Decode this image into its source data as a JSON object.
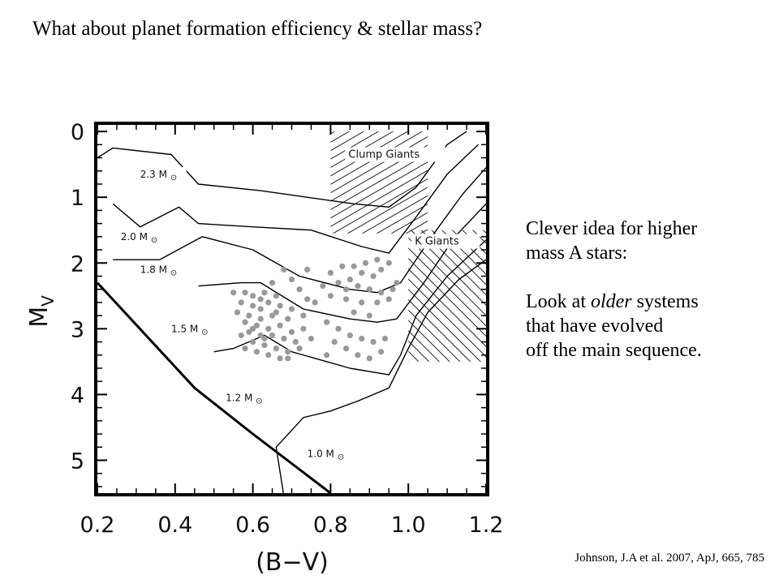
{
  "slide": {
    "title": "What about planet formation efficiency & stellar mass?",
    "side_text_lines": [
      "Clever idea for higher",
      "mass A stars:",
      "",
      "Look at older systems",
      "that have evolved",
      "off the main sequence."
    ],
    "side_text_emphasis": "older",
    "citation": "Johnson, J.A et al. 2007, ApJ, 665, 785"
  },
  "chart_data": {
    "type": "scatter",
    "title": "",
    "xlabel": "(B−V)",
    "ylabel": "M_V",
    "ylabel_main": "M",
    "ylabel_sub": "V",
    "xlim": [
      0.2,
      1.2
    ],
    "ylim": [
      5.5,
      -0.1
    ],
    "y_inverted": true,
    "x_ticks": [
      "0.2",
      "0.4",
      "0.6",
      "0.8",
      "1.0",
      "1.2"
    ],
    "y_ticks": [
      "0",
      "1",
      "2",
      "3",
      "4",
      "5"
    ],
    "grid": false,
    "legend": "none",
    "colors": {
      "points": "#999999",
      "lines": "#000000",
      "axes": "#000000"
    },
    "sun_symbol": "⊙",
    "regions": [
      {
        "name": "Clump Giants",
        "x": [
          0.8,
          1.05
        ],
        "y": [
          0.0,
          1.55
        ]
      },
      {
        "name": "K Giants",
        "x": [
          1.0,
          1.2
        ],
        "y": [
          1.5,
          3.5
        ]
      }
    ],
    "main_sequence": [
      [
        0.2,
        2.3
      ],
      [
        0.45,
        3.9
      ],
      [
        0.6,
        4.6
      ],
      [
        0.8,
        5.5
      ]
    ],
    "tracks": [
      {
        "mass_label": "2.3 M",
        "label_at": [
          0.31,
          0.7
        ],
        "points": [
          [
            0.2,
            0.4
          ],
          [
            0.24,
            0.25
          ],
          [
            0.39,
            0.35
          ],
          [
            0.46,
            0.8
          ],
          [
            0.62,
            0.9
          ],
          [
            0.74,
            1.0
          ],
          [
            0.86,
            1.1
          ],
          [
            0.95,
            1.15
          ],
          [
            1.02,
            0.85
          ],
          [
            1.1,
            0.2
          ],
          [
            1.15,
            0.0
          ]
        ]
      },
      {
        "mass_label": "2.0 M",
        "label_at": [
          0.26,
          1.65
        ],
        "points": [
          [
            0.24,
            1.1
          ],
          [
            0.31,
            1.45
          ],
          [
            0.41,
            1.15
          ],
          [
            0.46,
            1.4
          ],
          [
            0.6,
            1.45
          ],
          [
            0.75,
            1.5
          ],
          [
            0.88,
            1.75
          ],
          [
            0.95,
            1.85
          ],
          [
            1.02,
            1.3
          ],
          [
            1.1,
            0.65
          ],
          [
            1.18,
            0.2
          ]
        ]
      },
      {
        "mass_label": "1.8 M",
        "label_at": [
          0.31,
          2.15
        ],
        "points": [
          [
            0.24,
            1.95
          ],
          [
            0.36,
            1.95
          ],
          [
            0.47,
            1.6
          ],
          [
            0.6,
            1.8
          ],
          [
            0.72,
            2.2
          ],
          [
            0.85,
            2.4
          ],
          [
            0.92,
            2.45
          ],
          [
            0.98,
            2.3
          ],
          [
            1.06,
            1.6
          ],
          [
            1.14,
            0.95
          ],
          [
            1.2,
            0.55
          ]
        ]
      },
      {
        "mass_label": "1.5 M",
        "label_at": [
          0.39,
          3.05
        ],
        "points": [
          [
            0.46,
            2.35
          ],
          [
            0.57,
            2.3
          ],
          [
            0.62,
            2.3
          ],
          [
            0.73,
            2.7
          ],
          [
            0.85,
            2.85
          ],
          [
            0.92,
            2.9
          ],
          [
            0.97,
            2.85
          ],
          [
            1.04,
            2.3
          ],
          [
            1.12,
            1.6
          ],
          [
            1.2,
            1.1
          ]
        ]
      },
      {
        "mass_label": "1.2 M",
        "label_at": [
          0.53,
          4.1
        ],
        "points": [
          [
            0.5,
            3.35
          ],
          [
            0.55,
            3.3
          ],
          [
            0.63,
            3.1
          ],
          [
            0.7,
            3.35
          ],
          [
            0.85,
            3.6
          ],
          [
            0.95,
            3.7
          ],
          [
            0.98,
            3.4
          ],
          [
            1.02,
            2.8
          ],
          [
            1.1,
            2.2
          ],
          [
            1.2,
            1.65
          ]
        ]
      },
      {
        "mass_label": "1.0 M",
        "label_at": [
          0.74,
          4.95
        ],
        "points": [
          [
            0.68,
            5.55
          ],
          [
            0.66,
            4.8
          ],
          [
            0.73,
            4.35
          ],
          [
            0.8,
            4.25
          ],
          [
            0.87,
            4.1
          ],
          [
            0.95,
            3.9
          ],
          [
            1.0,
            3.3
          ],
          [
            1.05,
            2.75
          ],
          [
            1.13,
            2.25
          ],
          [
            1.2,
            1.95
          ]
        ]
      }
    ],
    "points": [
      {
        "x": 0.83,
        "y": 2.05
      },
      {
        "x": 0.86,
        "y": 2.05
      },
      {
        "x": 0.89,
        "y": 2.0
      },
      {
        "x": 0.92,
        "y": 1.95
      },
      {
        "x": 0.95,
        "y": 2.0
      },
      {
        "x": 0.93,
        "y": 2.1
      },
      {
        "x": 0.91,
        "y": 2.2
      },
      {
        "x": 0.88,
        "y": 2.15
      },
      {
        "x": 0.85,
        "y": 2.25
      },
      {
        "x": 0.82,
        "y": 2.3
      },
      {
        "x": 0.8,
        "y": 2.15
      },
      {
        "x": 0.78,
        "y": 2.35
      },
      {
        "x": 0.84,
        "y": 2.4
      },
      {
        "x": 0.87,
        "y": 2.35
      },
      {
        "x": 0.9,
        "y": 2.4
      },
      {
        "x": 0.93,
        "y": 2.45
      },
      {
        "x": 0.96,
        "y": 2.4
      },
      {
        "x": 0.95,
        "y": 2.55
      },
      {
        "x": 0.92,
        "y": 2.6
      },
      {
        "x": 0.88,
        "y": 2.6
      },
      {
        "x": 0.84,
        "y": 2.55
      },
      {
        "x": 0.8,
        "y": 2.5
      },
      {
        "x": 0.76,
        "y": 2.6
      },
      {
        "x": 0.72,
        "y": 2.4
      },
      {
        "x": 0.7,
        "y": 2.25
      },
      {
        "x": 0.74,
        "y": 2.1
      },
      {
        "x": 0.68,
        "y": 2.1
      },
      {
        "x": 0.65,
        "y": 2.3
      },
      {
        "x": 0.66,
        "y": 2.5
      },
      {
        "x": 0.63,
        "y": 2.45
      },
      {
        "x": 0.6,
        "y": 2.5
      },
      {
        "x": 0.58,
        "y": 2.45
      },
      {
        "x": 0.55,
        "y": 2.45
      },
      {
        "x": 0.57,
        "y": 2.6
      },
      {
        "x": 0.6,
        "y": 2.65
      },
      {
        "x": 0.62,
        "y": 2.7
      },
      {
        "x": 0.64,
        "y": 2.6
      },
      {
        "x": 0.67,
        "y": 2.65
      },
      {
        "x": 0.7,
        "y": 2.7
      },
      {
        "x": 0.73,
        "y": 2.8
      },
      {
        "x": 0.69,
        "y": 2.85
      },
      {
        "x": 0.65,
        "y": 2.8
      },
      {
        "x": 0.62,
        "y": 2.85
      },
      {
        "x": 0.59,
        "y": 2.8
      },
      {
        "x": 0.56,
        "y": 2.75
      },
      {
        "x": 0.58,
        "y": 2.9
      },
      {
        "x": 0.61,
        "y": 2.95
      },
      {
        "x": 0.64,
        "y": 3.0
      },
      {
        "x": 0.67,
        "y": 2.95
      },
      {
        "x": 0.7,
        "y": 3.05
      },
      {
        "x": 0.73,
        "y": 3.0
      },
      {
        "x": 0.75,
        "y": 3.15
      },
      {
        "x": 0.71,
        "y": 3.2
      },
      {
        "x": 0.68,
        "y": 3.15
      },
      {
        "x": 0.65,
        "y": 3.1
      },
      {
        "x": 0.62,
        "y": 3.1
      },
      {
        "x": 0.59,
        "y": 3.05
      },
      {
        "x": 0.57,
        "y": 3.1
      },
      {
        "x": 0.6,
        "y": 3.2
      },
      {
        "x": 0.63,
        "y": 3.25
      },
      {
        "x": 0.66,
        "y": 3.3
      },
      {
        "x": 0.69,
        "y": 3.35
      },
      {
        "x": 0.72,
        "y": 3.3
      },
      {
        "x": 0.67,
        "y": 3.45
      },
      {
        "x": 0.64,
        "y": 3.4
      },
      {
        "x": 0.61,
        "y": 3.35
      },
      {
        "x": 0.58,
        "y": 3.3
      },
      {
        "x": 0.62,
        "y": 2.55
      },
      {
        "x": 0.66,
        "y": 2.75
      },
      {
        "x": 0.6,
        "y": 3.0
      },
      {
        "x": 0.63,
        "y": 3.15
      },
      {
        "x": 0.69,
        "y": 3.45
      },
      {
        "x": 0.79,
        "y": 2.9
      },
      {
        "x": 0.82,
        "y": 3.0
      },
      {
        "x": 0.85,
        "y": 3.1
      },
      {
        "x": 0.88,
        "y": 3.15
      },
      {
        "x": 0.91,
        "y": 3.2
      },
      {
        "x": 0.94,
        "y": 3.15
      },
      {
        "x": 0.81,
        "y": 3.2
      },
      {
        "x": 0.84,
        "y": 3.3
      },
      {
        "x": 0.87,
        "y": 3.4
      },
      {
        "x": 0.9,
        "y": 3.45
      },
      {
        "x": 0.93,
        "y": 3.35
      },
      {
        "x": 0.79,
        "y": 3.4
      },
      {
        "x": 0.9,
        "y": 2.8
      },
      {
        "x": 0.97,
        "y": 2.3
      },
      {
        "x": 0.86,
        "y": 2.75
      },
      {
        "x": 0.74,
        "y": 2.55
      }
    ]
  }
}
